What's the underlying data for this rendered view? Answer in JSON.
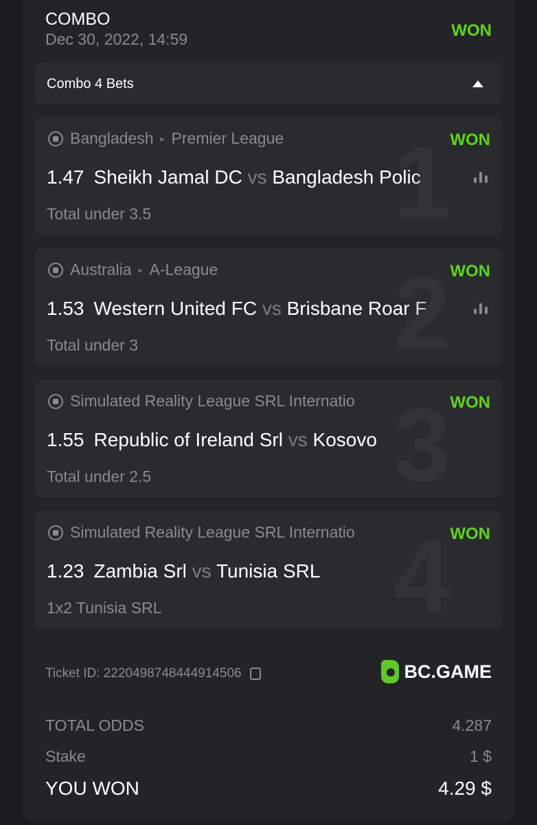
{
  "header": {
    "title": "COMBO",
    "date": "Dec 30, 2022, 14:59",
    "status": "WON"
  },
  "combo": {
    "label": "Combo 4 Bets",
    "icon": "caret-up-icon"
  },
  "bets": [
    {
      "index": "1",
      "league": "Bangladesh",
      "subleague": "Premier League",
      "status": "WON",
      "odds": "1.47",
      "home": "Sheikh Jamal DC",
      "vs": "vs",
      "away": "Bangladesh Polic",
      "market": "Total under 3.5",
      "stats": true
    },
    {
      "index": "2",
      "league": "Australia",
      "subleague": "A-League",
      "status": "WON",
      "odds": "1.53",
      "home": "Western United FC",
      "vs": "vs",
      "away": "Brisbane Roar F",
      "market": "Total under 3",
      "stats": true
    },
    {
      "index": "3",
      "league": "Simulated Reality League SRL Internatio",
      "subleague": "",
      "status": "WON",
      "odds": "1.55",
      "home": "Republic of Ireland Srl",
      "vs": "vs",
      "away": "Kosovo",
      "market": "Total under 2.5",
      "stats": false
    },
    {
      "index": "4",
      "league": "Simulated Reality League SRL Internatio",
      "subleague": "",
      "status": "WON",
      "odds": "1.23",
      "home": "Zambia Srl",
      "vs": "vs",
      "away": "Tunisia SRL",
      "market": "1x2 Tunisia SRL",
      "stats": false
    }
  ],
  "ticket": {
    "label": "Ticket ID: 2220498748444914506",
    "brand": "BC.GAME"
  },
  "summary": {
    "total_odds_label": "TOTAL ODDS",
    "total_odds": "4.287",
    "stake_label": "Stake",
    "stake": "1 $",
    "won_label": "YOU WON",
    "won": "4.29 $"
  },
  "colors": {
    "won": "#5fd31b",
    "background": "#1a1b1d",
    "card": "#232427",
    "bet_card": "#2a2b2e"
  }
}
